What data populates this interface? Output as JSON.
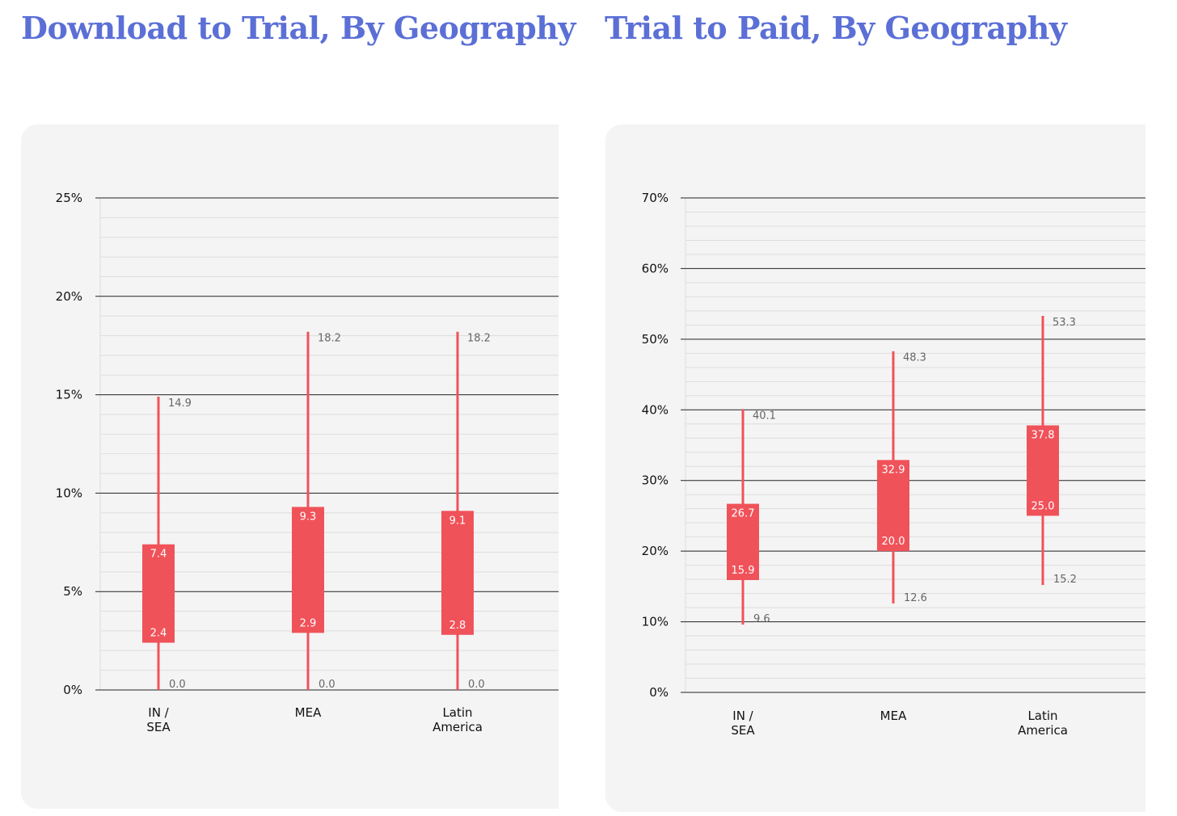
{
  "colors": {
    "title": "#5b6fd6",
    "box": "#f0525a",
    "panel": "#f4f4f4",
    "major_grid": "#222222",
    "minor_grid": "#dddddd"
  },
  "chart_data": [
    {
      "type": "box",
      "title": "Download to Trial, By Geography",
      "ylim": [
        0,
        25
      ],
      "yticks": [
        0,
        5,
        10,
        15,
        20,
        25
      ],
      "ytick_labels": [
        "0%",
        "5%",
        "10%",
        "15%",
        "20%",
        "25%"
      ],
      "minor_step": 1,
      "grid": true,
      "categories": [
        {
          "label_lines": [
            "IN /",
            "SEA"
          ],
          "min": 0.0,
          "q1": 2.4,
          "q3": 7.4,
          "max": 14.9,
          "labels": {
            "min": "0.0",
            "q1": "2.4",
            "q3": "7.4",
            "max": "14.9"
          }
        },
        {
          "label_lines": [
            "MEA"
          ],
          "min": 0.0,
          "q1": 2.9,
          "q3": 9.3,
          "max": 18.2,
          "labels": {
            "min": "0.0",
            "q1": "2.9",
            "q3": "9.3",
            "max": "18.2"
          }
        },
        {
          "label_lines": [
            "Latin",
            "America"
          ],
          "min": 0.0,
          "q1": 2.8,
          "q3": 9.1,
          "max": 18.2,
          "labels": {
            "min": "0.0",
            "q1": "2.8",
            "q3": "9.1",
            "max": "18.2"
          }
        }
      ]
    },
    {
      "type": "box",
      "title": "Trial to Paid, By Geography",
      "ylim": [
        0,
        70
      ],
      "yticks": [
        0,
        10,
        20,
        30,
        40,
        50,
        60,
        70
      ],
      "ytick_labels": [
        "0%",
        "10%",
        "20%",
        "30%",
        "40%",
        "50%",
        "60%",
        "70%"
      ],
      "minor_step": 2,
      "grid": true,
      "categories": [
        {
          "label_lines": [
            "IN /",
            "SEA"
          ],
          "min": 9.6,
          "q1": 15.9,
          "q3": 26.7,
          "max": 40.1,
          "labels": {
            "min": "9.6",
            "q1": "15.9",
            "q3": "26.7",
            "max": "40.1"
          }
        },
        {
          "label_lines": [
            "MEA"
          ],
          "min": 12.6,
          "q1": 20.0,
          "q3": 32.9,
          "max": 48.3,
          "labels": {
            "min": "12.6",
            "q1": "20.0",
            "q3": "32.9",
            "max": "48.3"
          }
        },
        {
          "label_lines": [
            "Latin",
            "America"
          ],
          "min": 15.2,
          "q1": 25.0,
          "q3": 37.8,
          "max": 53.3,
          "labels": {
            "min": "15.2",
            "q1": "25.0",
            "q3": "37.8",
            "max": "53.3"
          }
        }
      ]
    }
  ]
}
